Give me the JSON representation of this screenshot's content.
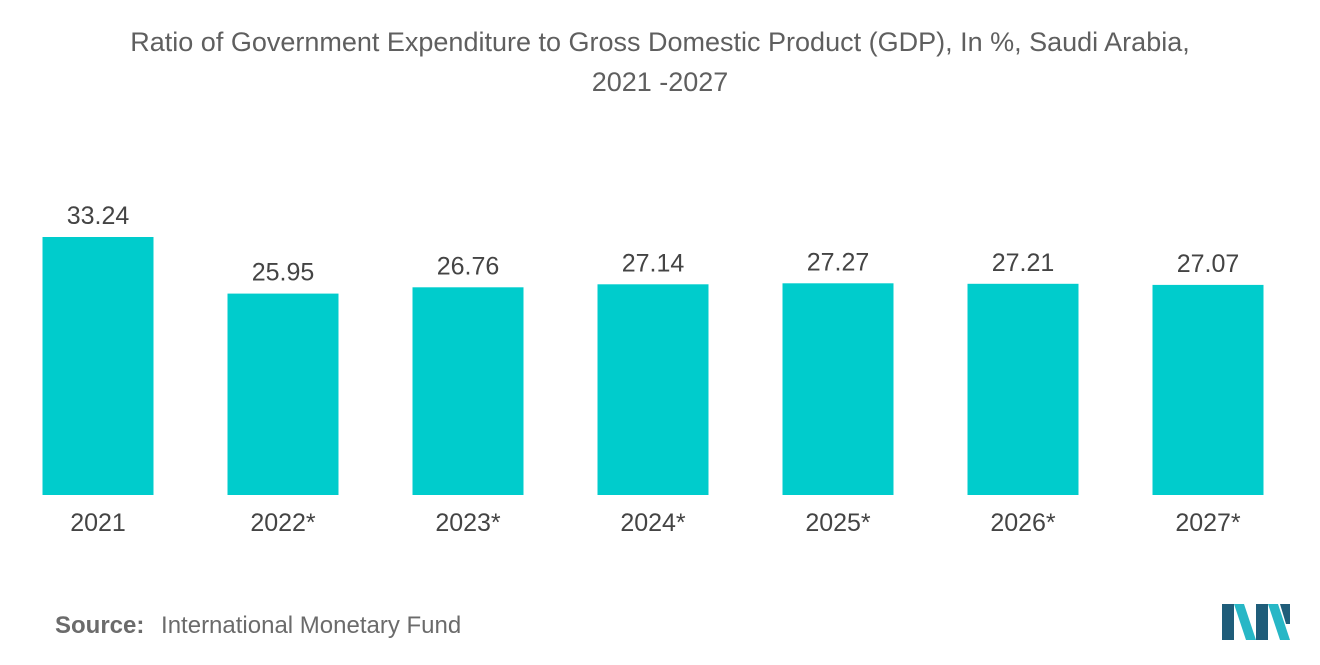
{
  "colors": {
    "bar": "#00CCCC",
    "logo_dark": "#1F5D7A",
    "logo_light": "#27B7C6"
  },
  "chart_data": {
    "type": "bar",
    "title_line1": "Ratio of Government Expenditure to Gross Domestic Product (GDP), In %, Saudi Arabia,",
    "title_line2": "2021 -2027",
    "categories": [
      "2021",
      "2022*",
      "2023*",
      "2024*",
      "2025*",
      "2026*",
      "2027*"
    ],
    "values": [
      33.24,
      25.95,
      26.76,
      27.14,
      27.27,
      27.21,
      27.07
    ],
    "value_labels": [
      "33.24",
      "25.95",
      "26.76",
      "27.14",
      "27.27",
      "27.21",
      "27.07"
    ],
    "xlabel": "",
    "ylabel": "",
    "ylim": [
      0,
      33.24
    ],
    "grid": false,
    "legend": "none"
  },
  "source": {
    "label": "Source:",
    "text": "International Monetary Fund"
  },
  "logo": {
    "icon": "mordor-intelligence-logo-icon"
  }
}
